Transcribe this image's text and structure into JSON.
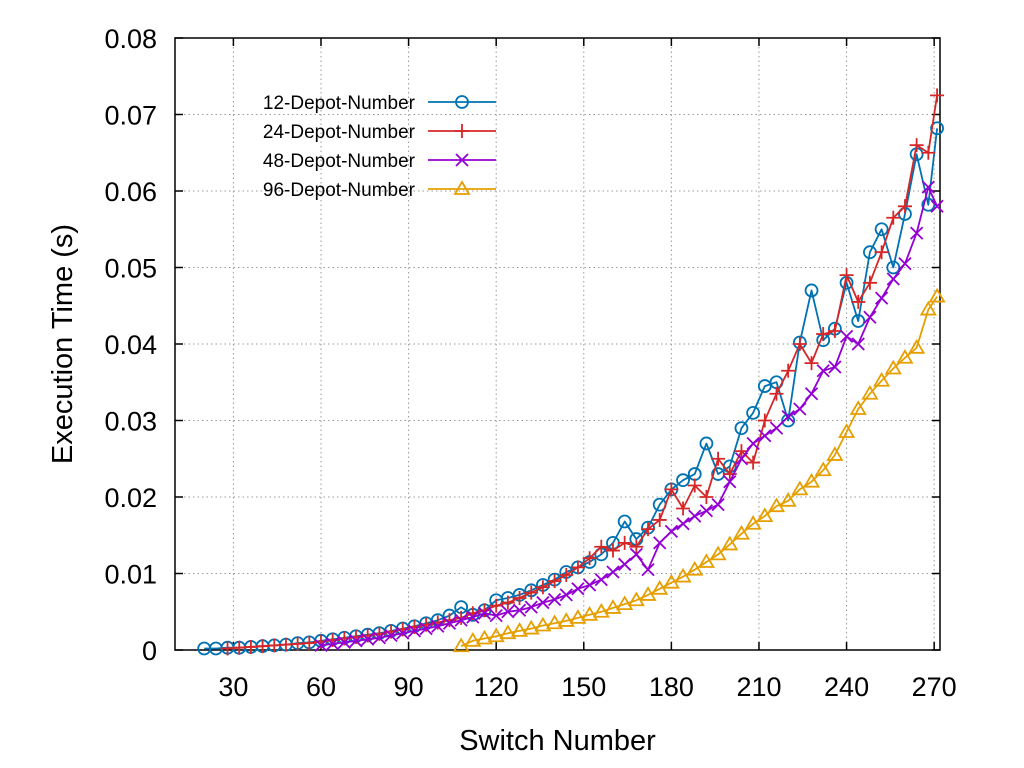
{
  "chart_data": {
    "type": "line",
    "title": "",
    "xlabel": "Switch Number",
    "ylabel": "Execution Time (s)",
    "xlim": [
      10,
      272
    ],
    "ylim": [
      0,
      0.08
    ],
    "x_ticks": [
      30,
      60,
      90,
      120,
      150,
      180,
      210,
      240,
      270
    ],
    "y_ticks": [
      0,
      0.01,
      0.02,
      0.03,
      0.04,
      0.05,
      0.06,
      0.07,
      0.08
    ],
    "y_tick_labels": [
      "0",
      "0.01",
      "0.02",
      "0.03",
      "0.04",
      "0.05",
      "0.06",
      "0.07",
      "0.08"
    ],
    "grid": true,
    "legend_position": "top-left",
    "series": [
      {
        "name": "12-Depot-Number",
        "color": "#0072b2",
        "marker": "circle",
        "x": [
          20,
          24,
          28,
          32,
          36,
          40,
          44,
          48,
          52,
          56,
          60,
          64,
          68,
          72,
          76,
          80,
          84,
          88,
          92,
          96,
          100,
          104,
          108,
          112,
          116,
          120,
          124,
          128,
          132,
          136,
          140,
          144,
          148,
          152,
          156,
          160,
          164,
          168,
          172,
          176,
          180,
          184,
          188,
          192,
          196,
          200,
          204,
          208,
          212,
          216,
          220,
          224,
          228,
          232,
          236,
          240,
          244,
          248,
          252,
          256,
          260,
          264,
          268,
          271
        ],
        "y": [
          0.0002,
          0.0002,
          0.0003,
          0.0003,
          0.0004,
          0.0005,
          0.0006,
          0.0007,
          0.0009,
          0.001,
          0.0012,
          0.0014,
          0.0016,
          0.0018,
          0.002,
          0.0022,
          0.0025,
          0.0028,
          0.0031,
          0.0035,
          0.0039,
          0.0045,
          0.0056,
          0.0046,
          0.0052,
          0.0065,
          0.0068,
          0.0072,
          0.0078,
          0.0085,
          0.0092,
          0.0102,
          0.0108,
          0.0115,
          0.0125,
          0.014,
          0.0168,
          0.0145,
          0.016,
          0.019,
          0.021,
          0.0222,
          0.023,
          0.027,
          0.023,
          0.024,
          0.029,
          0.031,
          0.0345,
          0.035,
          0.03,
          0.0402,
          0.047,
          0.0405,
          0.042,
          0.048,
          0.043,
          0.052,
          0.055,
          0.05,
          0.057,
          0.0648,
          0.0582,
          0.0682
        ]
      },
      {
        "name": "24-Depot-Number",
        "color": "#d62728",
        "marker": "plus",
        "x": [
          28,
          32,
          36,
          40,
          44,
          48,
          52,
          56,
          60,
          64,
          68,
          72,
          76,
          80,
          84,
          88,
          92,
          96,
          100,
          104,
          108,
          112,
          116,
          120,
          124,
          128,
          132,
          136,
          140,
          144,
          148,
          152,
          156,
          160,
          164,
          168,
          172,
          176,
          180,
          184,
          188,
          192,
          196,
          200,
          204,
          208,
          212,
          216,
          220,
          224,
          228,
          232,
          236,
          240,
          244,
          248,
          252,
          256,
          260,
          264,
          268,
          271
        ],
        "y": [
          0.0002,
          0.0003,
          0.0004,
          0.0005,
          0.0006,
          0.0007,
          0.0008,
          0.0009,
          0.0011,
          0.0013,
          0.0015,
          0.0017,
          0.0019,
          0.0021,
          0.0024,
          0.0027,
          0.003,
          0.0033,
          0.0036,
          0.0039,
          0.0042,
          0.0048,
          0.0052,
          0.0058,
          0.0062,
          0.0068,
          0.0075,
          0.0082,
          0.009,
          0.0098,
          0.0108,
          0.012,
          0.0135,
          0.013,
          0.014,
          0.0135,
          0.0158,
          0.017,
          0.021,
          0.0185,
          0.0215,
          0.02,
          0.025,
          0.023,
          0.026,
          0.0245,
          0.03,
          0.0335,
          0.0365,
          0.04,
          0.0375,
          0.0413,
          0.0417,
          0.049,
          0.0455,
          0.048,
          0.052,
          0.0565,
          0.058,
          0.066,
          0.065,
          0.0725
        ]
      },
      {
        "name": "48-Depot-Number",
        "color": "#9400d3",
        "marker": "x",
        "x": [
          60,
          64,
          68,
          72,
          76,
          80,
          84,
          88,
          92,
          96,
          100,
          104,
          108,
          112,
          116,
          120,
          124,
          128,
          132,
          136,
          140,
          144,
          148,
          152,
          156,
          160,
          164,
          168,
          172,
          176,
          180,
          184,
          188,
          192,
          196,
          200,
          204,
          208,
          212,
          216,
          220,
          224,
          228,
          232,
          236,
          240,
          244,
          248,
          252,
          256,
          260,
          264,
          268,
          271
        ],
        "y": [
          0.0006,
          0.0008,
          0.001,
          0.0012,
          0.0014,
          0.0016,
          0.0019,
          0.0022,
          0.0025,
          0.0028,
          0.0031,
          0.0035,
          0.0039,
          0.0043,
          0.0048,
          0.0045,
          0.005,
          0.0052,
          0.0056,
          0.0062,
          0.0066,
          0.0072,
          0.008,
          0.0085,
          0.0092,
          0.0102,
          0.0112,
          0.0125,
          0.0105,
          0.014,
          0.0155,
          0.0165,
          0.0175,
          0.0182,
          0.019,
          0.022,
          0.025,
          0.027,
          0.028,
          0.029,
          0.0305,
          0.0315,
          0.0335,
          0.0365,
          0.037,
          0.041,
          0.04,
          0.0435,
          0.046,
          0.0485,
          0.0505,
          0.0545,
          0.0605,
          0.058
        ]
      },
      {
        "name": "96-Depot-Number",
        "color": "#e69f00",
        "marker": "triangle",
        "x": [
          108,
          112,
          116,
          120,
          124,
          128,
          132,
          136,
          140,
          144,
          148,
          152,
          156,
          160,
          164,
          168,
          172,
          176,
          180,
          184,
          188,
          192,
          196,
          200,
          204,
          208,
          212,
          216,
          220,
          224,
          228,
          232,
          236,
          240,
          244,
          248,
          252,
          256,
          260,
          264,
          268,
          271
        ],
        "y": [
          0.0005,
          0.0012,
          0.0015,
          0.0018,
          0.0022,
          0.0025,
          0.0028,
          0.0032,
          0.0035,
          0.0038,
          0.0042,
          0.0046,
          0.005,
          0.0055,
          0.006,
          0.0065,
          0.0072,
          0.008,
          0.0088,
          0.0096,
          0.0105,
          0.0115,
          0.0125,
          0.0138,
          0.0152,
          0.0165,
          0.0175,
          0.0188,
          0.0195,
          0.021,
          0.022,
          0.0235,
          0.0255,
          0.0285,
          0.0315,
          0.0335,
          0.0352,
          0.0368,
          0.0382,
          0.0395,
          0.0445,
          0.0462
        ]
      }
    ]
  }
}
